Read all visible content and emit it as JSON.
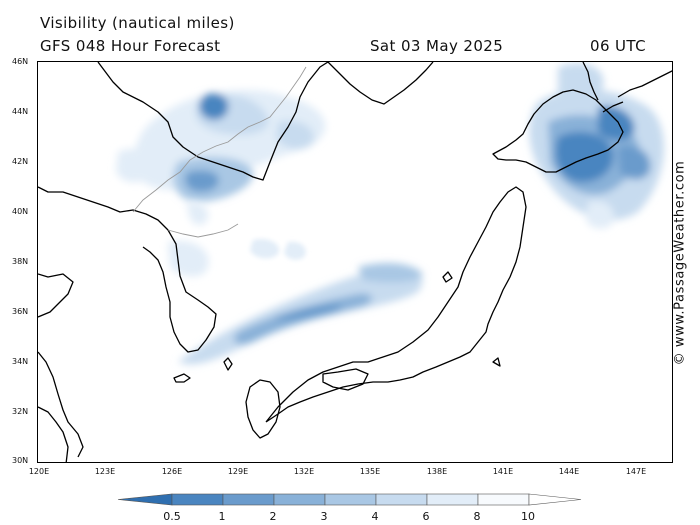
{
  "header": {
    "title": "Visibility (nautical miles)",
    "model": "GFS 048 Hour Forecast",
    "date": "Sat 03 May 2025",
    "time": "06 UTC"
  },
  "credit": "© www.PassageWeather.com",
  "map": {
    "lat_labels": [
      "46N",
      "44N",
      "42N",
      "40N",
      "38N",
      "36N",
      "34N",
      "32N",
      "30N"
    ],
    "lon_labels": [
      "120E",
      "123E",
      "126E",
      "129E",
      "132E",
      "135E",
      "138E",
      "141E",
      "144E",
      "147E"
    ],
    "lat_range": [
      30,
      46
    ],
    "lon_range": [
      120,
      149
    ]
  },
  "legend": {
    "labels": [
      "0.5",
      "1",
      "2",
      "3",
      "4",
      "6",
      "8",
      "10"
    ],
    "colors": [
      "#2f6fb0",
      "#4a85c0",
      "#6a9bcc",
      "#89b1d8",
      "#a9c7e4",
      "#c7dbef",
      "#e2edf8",
      "#f7fafd"
    ]
  }
}
